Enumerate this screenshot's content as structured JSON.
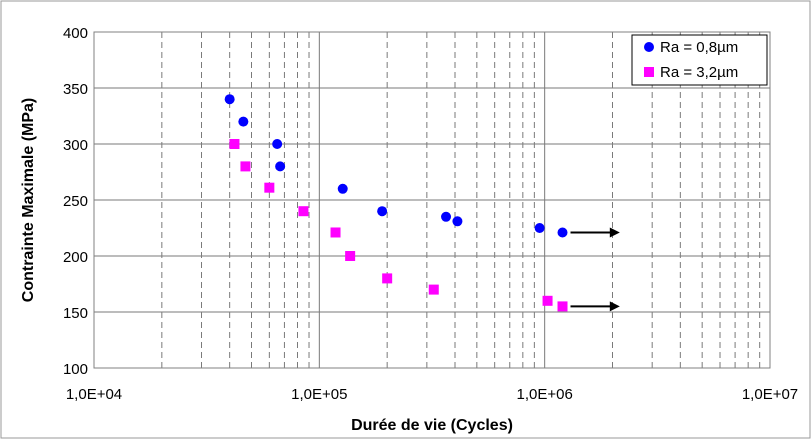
{
  "chart_data": {
    "type": "scatter",
    "title": "",
    "xlabel": "Durée de vie (Cycles)",
    "ylabel": "Contrainte Maximale (MPa)",
    "xscale": "log",
    "xlim": [
      10000,
      10000000
    ],
    "ylim": [
      100,
      400
    ],
    "x_ticks": [
      10000,
      100000,
      1000000,
      10000000
    ],
    "x_tick_labels": [
      "1,0E+04",
      "1,0E+05",
      "1,0E+06",
      "1,0E+07"
    ],
    "y_ticks": [
      100,
      150,
      200,
      250,
      300,
      350,
      400
    ],
    "y_tick_labels": [
      "100",
      "150",
      "200",
      "250",
      "300",
      "350",
      "400"
    ],
    "grid": true,
    "legend_position": "top-right",
    "series": [
      {
        "name": "Ra = 0,8µm",
        "marker": "circle",
        "color": "#0000ff",
        "points": [
          {
            "x": 40000,
            "y": 340
          },
          {
            "x": 46000,
            "y": 320
          },
          {
            "x": 65000,
            "y": 300
          },
          {
            "x": 67000,
            "y": 280
          },
          {
            "x": 127000,
            "y": 260
          },
          {
            "x": 190000,
            "y": 240
          },
          {
            "x": 365000,
            "y": 235
          },
          {
            "x": 410000,
            "y": 231
          },
          {
            "x": 950000,
            "y": 225
          },
          {
            "x": 1200000,
            "y": 221
          }
        ]
      },
      {
        "name": "Ra = 3,2µm",
        "marker": "square",
        "color": "#ff00ff",
        "points": [
          {
            "x": 42000,
            "y": 300
          },
          {
            "x": 47000,
            "y": 280
          },
          {
            "x": 60000,
            "y": 261
          },
          {
            "x": 85000,
            "y": 240
          },
          {
            "x": 118000,
            "y": 221
          },
          {
            "x": 137000,
            "y": 200
          },
          {
            "x": 200000,
            "y": 180
          },
          {
            "x": 322000,
            "y": 170
          },
          {
            "x": 1030000,
            "y": 160
          },
          {
            "x": 1200000,
            "y": 155
          }
        ]
      }
    ],
    "annotations": [
      {
        "type": "arrow",
        "from": {
          "x": 1200000,
          "y": 221
        },
        "to": {
          "x": 2200000,
          "y": 221
        },
        "meaning": "runout"
      },
      {
        "type": "arrow",
        "from": {
          "x": 1200000,
          "y": 155
        },
        "to": {
          "x": 2200000,
          "y": 155
        },
        "meaning": "runout"
      }
    ]
  }
}
